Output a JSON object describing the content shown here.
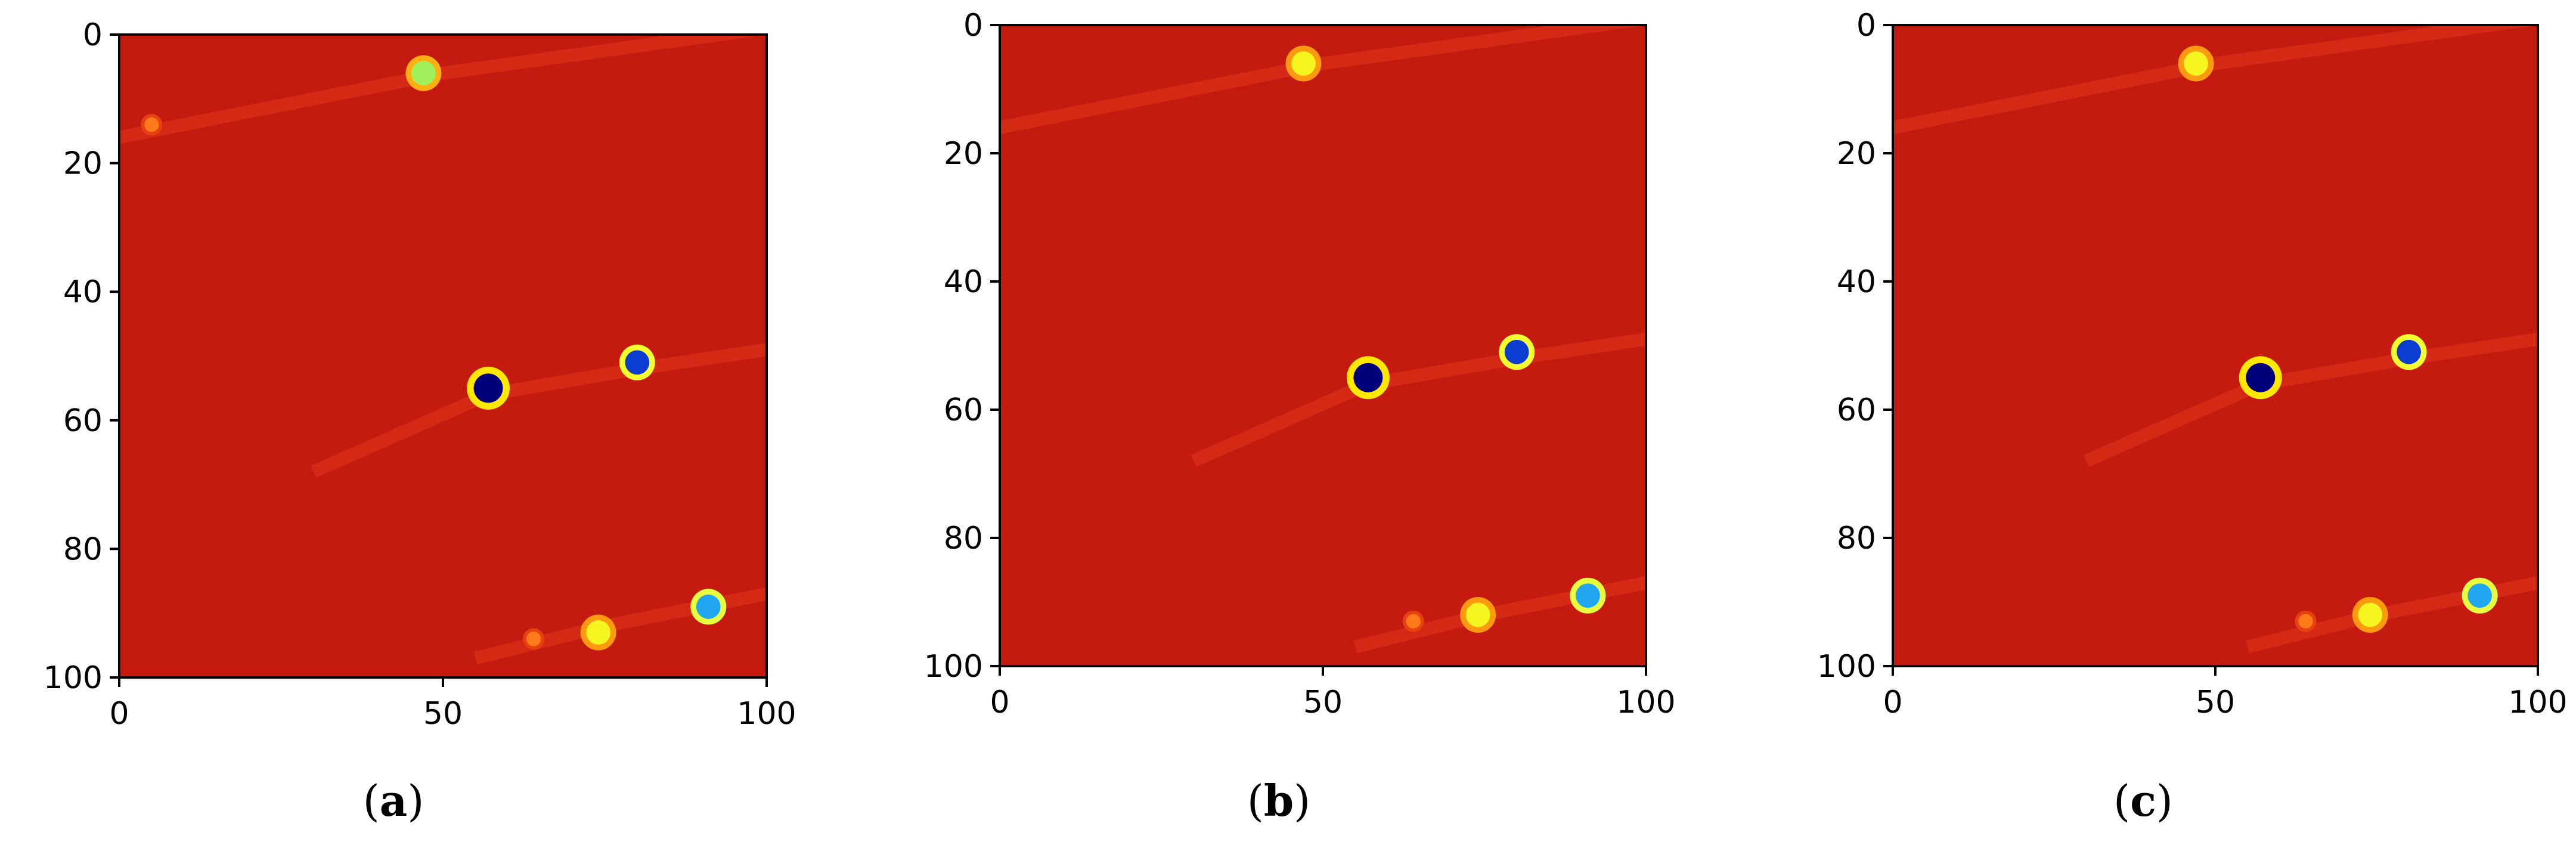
{
  "figure": {
    "panels": [
      {
        "label_open": "(",
        "label_letter": "a",
        "label_close": ")"
      },
      {
        "label_open": "(",
        "label_letter": "b",
        "label_close": ")"
      },
      {
        "label_open": "(",
        "label_letter": "c",
        "label_close": ")"
      }
    ]
  },
  "chart_data": [
    {
      "type": "heatmap",
      "title": "",
      "xlabel": "",
      "ylabel": "",
      "xlim": [
        0,
        100
      ],
      "ylim": [
        100,
        0
      ],
      "x_ticks": [
        "0",
        "50",
        "100"
      ],
      "y_ticks": [
        "0",
        "20",
        "40",
        "60",
        "80",
        "100"
      ],
      "colormap": "jet",
      "background_color": "#c41a10",
      "spots": [
        {
          "x": 47,
          "y": 6,
          "intensity": "yellow-green"
        },
        {
          "x": 5,
          "y": 14,
          "intensity": "orange"
        },
        {
          "x": 57,
          "y": 55,
          "intensity": "dark-blue"
        },
        {
          "x": 80,
          "y": 51,
          "intensity": "blue"
        },
        {
          "x": 91,
          "y": 89,
          "intensity": "cyan"
        },
        {
          "x": 74,
          "y": 93,
          "intensity": "yellow"
        },
        {
          "x": 64,
          "y": 94,
          "intensity": "orange"
        }
      ]
    },
    {
      "type": "heatmap",
      "title": "",
      "xlabel": "",
      "ylabel": "",
      "xlim": [
        0,
        100
      ],
      "ylim": [
        100,
        0
      ],
      "x_ticks": [
        "0",
        "50",
        "100"
      ],
      "y_ticks": [
        "0",
        "20",
        "40",
        "60",
        "80",
        "100"
      ],
      "colormap": "jet",
      "background_color": "#c41a10",
      "spots": [
        {
          "x": 47,
          "y": 6,
          "intensity": "yellow"
        },
        {
          "x": 57,
          "y": 55,
          "intensity": "dark-blue"
        },
        {
          "x": 80,
          "y": 51,
          "intensity": "blue"
        },
        {
          "x": 91,
          "y": 89,
          "intensity": "cyan"
        },
        {
          "x": 74,
          "y": 92,
          "intensity": "yellow"
        },
        {
          "x": 64,
          "y": 93,
          "intensity": "orange"
        }
      ]
    },
    {
      "type": "heatmap",
      "title": "",
      "xlabel": "",
      "ylabel": "",
      "xlim": [
        0,
        100
      ],
      "ylim": [
        100,
        0
      ],
      "x_ticks": [
        "0",
        "50",
        "100"
      ],
      "y_ticks": [
        "0",
        "20",
        "40",
        "60",
        "80",
        "100"
      ],
      "colormap": "jet",
      "background_color": "#c41a10",
      "spots": [
        {
          "x": 47,
          "y": 6,
          "intensity": "yellow"
        },
        {
          "x": 57,
          "y": 55,
          "intensity": "dark-blue"
        },
        {
          "x": 80,
          "y": 51,
          "intensity": "blue"
        },
        {
          "x": 91,
          "y": 89,
          "intensity": "cyan"
        },
        {
          "x": 74,
          "y": 92,
          "intensity": "yellow"
        },
        {
          "x": 64,
          "y": 93,
          "intensity": "orange"
        }
      ]
    }
  ]
}
